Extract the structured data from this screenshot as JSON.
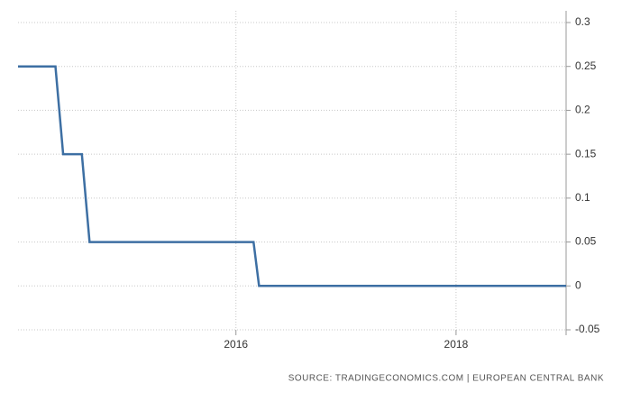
{
  "chart_data": {
    "type": "line",
    "x": [
      2014.02,
      2014.36,
      2014.43,
      2014.6,
      2014.67,
      2016.16,
      2016.21,
      2019.0
    ],
    "values": [
      0.25,
      0.25,
      0.15,
      0.15,
      0.05,
      0.05,
      0,
      0
    ],
    "color": "#3d6fa3",
    "xlim": [
      2014.02,
      2019.0
    ],
    "xticks": [
      2016,
      2018
    ],
    "ylim": [
      -0.05,
      0.3
    ],
    "yticks": [
      0.3,
      0.25,
      0.2,
      0.15,
      0.1,
      0.05,
      0,
      -0.05
    ],
    "grid": true,
    "source": "SOURCE: TRADINGECONOMICS.COM | EUROPEAN CENTRAL BANK"
  }
}
